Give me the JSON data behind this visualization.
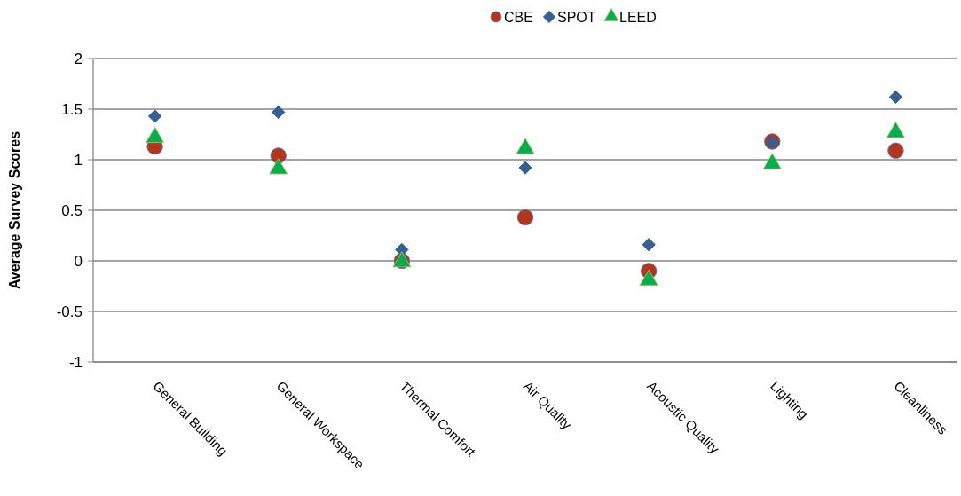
{
  "chart_data": {
    "type": "scatter",
    "ylabel": "Average Survey Scores",
    "categories": [
      "General Building",
      "General Workspace",
      "Thermal Comfort",
      "Air Quality",
      "Acoustic Quality",
      "Lighting",
      "Cleanliness"
    ],
    "series": [
      {
        "name": "CBE",
        "color": "#b5341a",
        "marker": "circle",
        "values": [
          1.13,
          1.04,
          0.0,
          0.43,
          -0.1,
          1.18,
          1.09
        ]
      },
      {
        "name": "SPOT",
        "color": "#376092",
        "marker": "diamond",
        "values": [
          1.43,
          1.47,
          0.11,
          0.92,
          0.16,
          1.17,
          1.62
        ]
      },
      {
        "name": "LEED",
        "color": "#00b050",
        "marker": "triangle",
        "values": [
          1.22,
          0.91,
          -0.01,
          1.11,
          -0.19,
          0.96,
          1.27
        ]
      }
    ],
    "ylim": [
      -1,
      2
    ],
    "yticks": [
      -1,
      -0.5,
      0,
      0.5,
      1,
      1.5,
      2
    ],
    "grid": "y",
    "legend": "top"
  }
}
